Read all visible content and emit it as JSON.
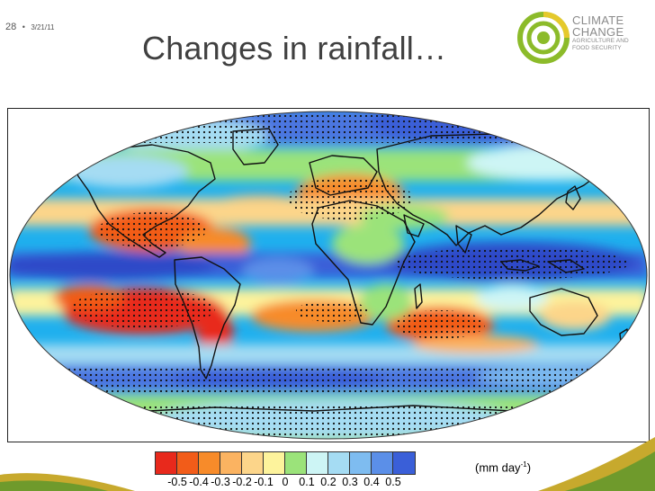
{
  "slide": {
    "number": "28",
    "separator": "•",
    "date": "3/21/11"
  },
  "title": "Changes in rainfall…",
  "logo": {
    "line1": "CLIMATE",
    "line2": "CHANGE",
    "line3": "AGRICULTURE AND",
    "line4": "FOOD SECURITY"
  },
  "legend": {
    "units_prefix": "(mm day",
    "units_sup": "-1",
    "units_suffix": ")",
    "ticks": [
      "-0.5",
      "-0.4",
      "-0.3",
      "-0.2",
      "-0.1",
      "0",
      "0.1",
      "0.2",
      "0.3",
      "0.4",
      "0.5"
    ],
    "colors": [
      "#e8291c",
      "#f25c19",
      "#f78b2a",
      "#fbb361",
      "#fcd58a",
      "#fdf39c",
      "#9be37a",
      "#cdf5f5",
      "#a5dcf3",
      "#7ebcf0",
      "#5b8fe8",
      "#3a5fd8"
    ]
  },
  "colors": {
    "map_background": "#1fb0ee",
    "land_outline": "#111111",
    "stipple": "#111111",
    "logo_green": "#8cbb2a",
    "logo_yellow": "#e5c92c",
    "footer_green": "#6f9a2c",
    "footer_yellow": "#c7a92d"
  }
}
